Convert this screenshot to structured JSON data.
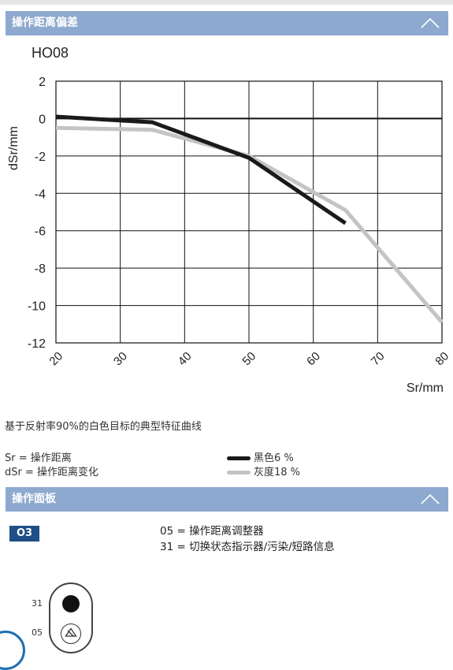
{
  "section1": {
    "title": "操作距离偏差"
  },
  "chart_data": {
    "type": "line",
    "title": "HO08",
    "xlabel": "Sr/mm",
    "ylabel": "dSr/mm",
    "x_ticks": [
      "20",
      "30",
      "40",
      "50",
      "60",
      "70",
      "80"
    ],
    "y_ticks": [
      "2",
      "0",
      "-2",
      "-4",
      "-6",
      "-8",
      "-10",
      "-12"
    ],
    "xlim": [
      20,
      80
    ],
    "ylim": [
      -12,
      2
    ],
    "grid": true,
    "series": [
      {
        "name": "黑色6 %",
        "color": "#1a1a1a",
        "x": [
          20,
          35,
          50,
          65
        ],
        "y": [
          0.1,
          -0.2,
          -2.1,
          -5.6
        ]
      },
      {
        "name": "灰度18 %",
        "color": "#c4c4c4",
        "x": [
          20,
          35,
          50,
          65,
          80
        ],
        "y": [
          -0.5,
          -0.6,
          -2.0,
          -4.9,
          -10.9
        ]
      }
    ]
  },
  "caption": "基于反射率90%的白色目标的典型特征曲线",
  "defs": {
    "sr": "Sr = 操作距离",
    "dsr": "dSr = 操作距离变化"
  },
  "legend": {
    "black": "黑色6 %",
    "gray": "灰度18 %"
  },
  "section2": {
    "title": "操作面板"
  },
  "panel": {
    "badge": "O3",
    "line1": "05 = 操作距离调整器",
    "line2": "31 = 切换状态指示器/污染/短路信息",
    "label31": "31",
    "label05": "05"
  },
  "colors": {
    "bar": "#8ea9cf",
    "badge": "#1f4f86",
    "black_line": "#1a1a1a",
    "gray_line": "#c4c4c4"
  }
}
